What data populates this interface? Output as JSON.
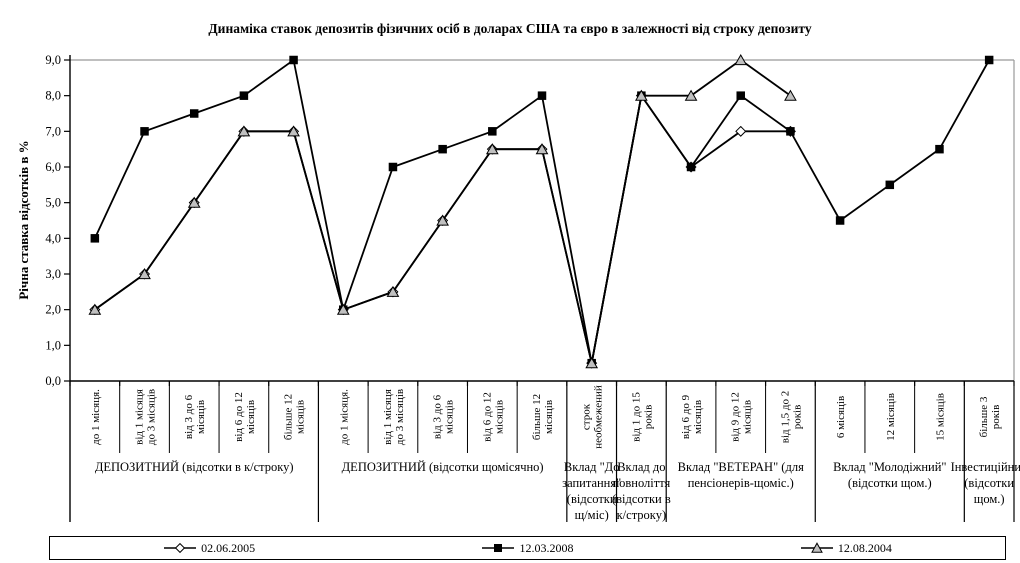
{
  "chart_data": {
    "type": "line",
    "title": "Динаміка ставок депозитів фізичних осіб в доларах США та євро в залежності від строку депозиту",
    "ylabel": "Річна ставка відсотків в %",
    "ylim": [
      0,
      9
    ],
    "ytick_labels": [
      "0,0",
      "1,0",
      "2,0",
      "3,0",
      "4,0",
      "5,0",
      "6,0",
      "7,0",
      "8,0",
      "9,0"
    ],
    "grid": "top-line-only",
    "legend_position": "bottom",
    "categories": [
      "до 1 місяця.",
      "від 1 місяця\nдо 3 місяців",
      "від 3 до 6\nмісяців",
      "від 6 до 12\nмісяців",
      "більше 12\nмісяців",
      "до 1 місяця.",
      "від 1 місяця\nдо 3 місяців",
      "від 3 до 6\nмісяців",
      "від 6 до 12\nмісяців",
      "більше 12\nмісяців",
      "строк\nнеобмежений",
      "від 1 до 15\nроків",
      "від 6 до 9\nмісяців",
      "від 9 до 12\nмісяців",
      "від 1,5 до 2\nроків",
      "6 місяців",
      "12 місяців",
      "15 місяців",
      "більше 3\nроків"
    ],
    "groups": [
      {
        "label": "ДЕПОЗИТНИЙ (відсотки в к/строку)",
        "count": 5
      },
      {
        "label": "ДЕПОЗИТНИЙ (відсотки щомісячно)",
        "count": 5
      },
      {
        "label": "Вклад \"До\nзапитання\"\n(відсотки\nщ/міс)",
        "count": 1
      },
      {
        "label": "Вклад до\nповноліття\n(відсотки в\nк/строку)",
        "count": 1
      },
      {
        "label": "Вклад \"ВЕТЕРАН\" (для\nпенсіонерів-щоміс.)",
        "count": 3
      },
      {
        "label": "Вклад \"Молодіжний\"\n(відсотки щом.)",
        "count": 3
      },
      {
        "label": "Інвестиційний\n(відсотки\nщом.)",
        "count": 1
      }
    ],
    "series": [
      {
        "name": "02.06.2005",
        "marker": "diamond",
        "values": [
          2.0,
          3.0,
          5.0,
          7.0,
          7.0,
          2.0,
          2.5,
          4.5,
          6.5,
          6.5,
          0.5,
          8.0,
          6.0,
          7.0,
          7.0,
          null,
          null,
          null,
          null
        ]
      },
      {
        "name": "12.03.2008",
        "marker": "square",
        "values": [
          4.0,
          7.0,
          7.5,
          8.0,
          9.0,
          2.0,
          6.0,
          6.5,
          7.0,
          8.0,
          0.5,
          8.0,
          6.0,
          8.0,
          7.0,
          4.5,
          5.5,
          6.5,
          9.0
        ]
      },
      {
        "name": "12.08.2004",
        "marker": "triangle",
        "values": [
          2.0,
          3.0,
          5.0,
          7.0,
          7.0,
          2.0,
          2.5,
          4.5,
          6.5,
          6.5,
          0.5,
          8.0,
          8.0,
          9.0,
          8.0,
          null,
          null,
          null,
          null
        ]
      }
    ],
    "colors": {
      "line": "#000000",
      "grid": "#999999",
      "diamond_fill": "#ffffff",
      "square_fill": "#000000",
      "triangle_fill": "#c0c0c0"
    }
  }
}
